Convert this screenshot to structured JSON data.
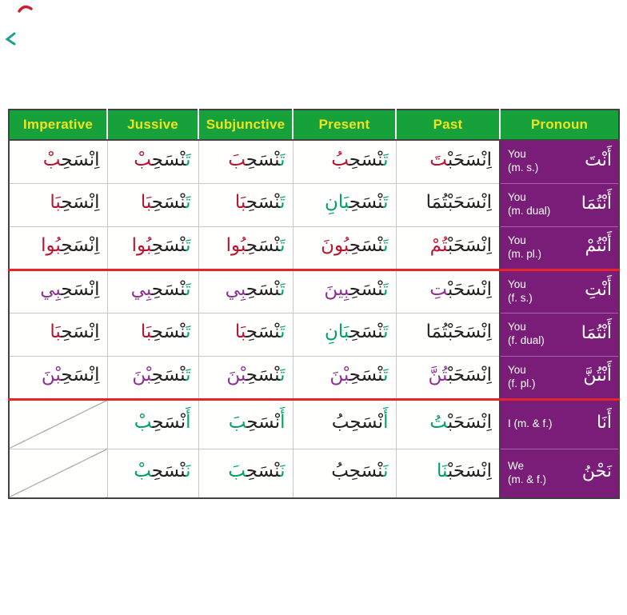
{
  "colors": {
    "black": "#231f20",
    "green": "#00a167",
    "red": "#b9132f",
    "purple": "#8d3190",
    "header_bg": "#17a13b",
    "header_text": "#efe31d",
    "pronoun_bg": "#7a1d79",
    "pronoun_text": "#ffffff",
    "section_line": "#e8242b",
    "grid_line": "#c8c8c8",
    "outer_border": "#414042"
  },
  "header": {
    "columns": [
      "Imperative",
      "Jussive",
      "Subjunctive",
      "Present",
      "Past",
      "Pronoun"
    ]
  },
  "column_keys": [
    "imperative",
    "jussive",
    "subjunctive",
    "present",
    "past"
  ],
  "rows": [
    {
      "imperative": [
        [
          "اِنْسَحِ",
          "black"
        ],
        [
          "بْ",
          "red"
        ]
      ],
      "jussive": [
        [
          "تَ",
          "green"
        ],
        [
          "نْسَحِ",
          "black"
        ],
        [
          "بْ",
          "red"
        ]
      ],
      "subjunctive": [
        [
          "تَ",
          "green"
        ],
        [
          "نْسَحِ",
          "black"
        ],
        [
          "بَ",
          "red"
        ]
      ],
      "present": [
        [
          "تَ",
          "green"
        ],
        [
          "نْسَحِ",
          "black"
        ],
        [
          "بُ",
          "red"
        ]
      ],
      "past": [
        [
          "اِنْسَحَبْ",
          "black"
        ],
        [
          "تَ",
          "red"
        ]
      ],
      "pronoun": {
        "en": [
          "You",
          "(m. s.)"
        ],
        "ar": "أَنْتَ"
      },
      "section_end": false
    },
    {
      "imperative": [
        [
          "اِنْسَحِ",
          "black"
        ],
        [
          "بَا",
          "red"
        ]
      ],
      "jussive": [
        [
          "تَ",
          "green"
        ],
        [
          "نْسَحِ",
          "black"
        ],
        [
          "بَا",
          "red"
        ]
      ],
      "subjunctive": [
        [
          "تَ",
          "green"
        ],
        [
          "نْسَحِ",
          "black"
        ],
        [
          "بَا",
          "red"
        ]
      ],
      "present": [
        [
          "تَ",
          "green"
        ],
        [
          "نْسَحِ",
          "black"
        ],
        [
          "بَانِ",
          "green"
        ]
      ],
      "past": [
        [
          "اِنْسَحَبْتُمَا",
          "black"
        ]
      ],
      "pronoun": {
        "en": [
          "You",
          "(m. dual)"
        ],
        "ar": "أَنْتُمَا"
      },
      "section_end": false
    },
    {
      "imperative": [
        [
          "اِنْسَحِ",
          "black"
        ],
        [
          "بُوا",
          "red"
        ]
      ],
      "jussive": [
        [
          "تَ",
          "green"
        ],
        [
          "نْسَحِ",
          "black"
        ],
        [
          "بُوا",
          "red"
        ]
      ],
      "subjunctive": [
        [
          "تَ",
          "green"
        ],
        [
          "نْسَحِ",
          "black"
        ],
        [
          "بُوا",
          "red"
        ]
      ],
      "present": [
        [
          "تَ",
          "green"
        ],
        [
          "نْسَحِ",
          "black"
        ],
        [
          "بُونَ",
          "red"
        ]
      ],
      "past": [
        [
          "اِنْسَحَبْ",
          "black"
        ],
        [
          "تُمْ",
          "red"
        ]
      ],
      "pronoun": {
        "en": [
          "You",
          "(m. pl.)"
        ],
        "ar": "أَنْتُمْ"
      },
      "section_end": true
    },
    {
      "imperative": [
        [
          "اِنْسَحِ",
          "black"
        ],
        [
          "بِي",
          "purple"
        ]
      ],
      "jussive": [
        [
          "تَ",
          "green"
        ],
        [
          "نْسَحِ",
          "black"
        ],
        [
          "بِي",
          "purple"
        ]
      ],
      "subjunctive": [
        [
          "تَ",
          "green"
        ],
        [
          "نْسَحِ",
          "black"
        ],
        [
          "بِي",
          "purple"
        ]
      ],
      "present": [
        [
          "تَ",
          "green"
        ],
        [
          "نْسَحِ",
          "black"
        ],
        [
          "بِينَ",
          "purple"
        ]
      ],
      "past": [
        [
          "اِنْسَحَبْ",
          "black"
        ],
        [
          "تِ",
          "purple"
        ]
      ],
      "pronoun": {
        "en": [
          "You",
          "(f. s.)"
        ],
        "ar": "أَنْتِ"
      },
      "section_end": false
    },
    {
      "imperative": [
        [
          "اِنْسَحِ",
          "black"
        ],
        [
          "بَا",
          "red"
        ]
      ],
      "jussive": [
        [
          "تَ",
          "green"
        ],
        [
          "نْسَحِ",
          "black"
        ],
        [
          "بَا",
          "red"
        ]
      ],
      "subjunctive": [
        [
          "تَ",
          "green"
        ],
        [
          "نْسَحِ",
          "black"
        ],
        [
          "بَا",
          "red"
        ]
      ],
      "present": [
        [
          "تَ",
          "green"
        ],
        [
          "نْسَحِ",
          "black"
        ],
        [
          "بَانِ",
          "green"
        ]
      ],
      "past": [
        [
          "اِنْسَحَبْتُمَا",
          "black"
        ]
      ],
      "pronoun": {
        "en": [
          "You",
          "(f. dual)"
        ],
        "ar": "أَنْتُمَا"
      },
      "section_end": false
    },
    {
      "imperative": [
        [
          "اِنْسَحِ",
          "black"
        ],
        [
          "بْنَ",
          "purple"
        ]
      ],
      "jussive": [
        [
          "تَ",
          "green"
        ],
        [
          "نْسَحِ",
          "black"
        ],
        [
          "بْنَ",
          "purple"
        ]
      ],
      "subjunctive": [
        [
          "تَ",
          "green"
        ],
        [
          "نْسَحِ",
          "black"
        ],
        [
          "بْنَ",
          "purple"
        ]
      ],
      "present": [
        [
          "تَ",
          "green"
        ],
        [
          "نْسَحِ",
          "black"
        ],
        [
          "بْنَ",
          "purple"
        ]
      ],
      "past": [
        [
          "اِنْسَحَبْ",
          "black"
        ],
        [
          "تُنَّ",
          "purple"
        ]
      ],
      "pronoun": {
        "en": [
          "You",
          "(f. pl.)"
        ],
        "ar": "أَنْتُنَّ"
      },
      "section_end": true
    },
    {
      "imperative": null,
      "jussive": [
        [
          "أَ",
          "green"
        ],
        [
          "نْسَحِ",
          "black"
        ],
        [
          "بْ",
          "green"
        ]
      ],
      "subjunctive": [
        [
          "أَ",
          "green"
        ],
        [
          "نْسَحِ",
          "black"
        ],
        [
          "بَ",
          "green"
        ]
      ],
      "present": [
        [
          "أَ",
          "green"
        ],
        [
          "نْسَحِبُ",
          "black"
        ]
      ],
      "past": [
        [
          "اِنْسَحَبْ",
          "black"
        ],
        [
          "تُ",
          "green"
        ]
      ],
      "pronoun": {
        "en": [
          "I (m. & f.)"
        ],
        "ar": "أَنَا"
      },
      "section_end": false
    },
    {
      "imperative": null,
      "jussive": [
        [
          "نَ",
          "green"
        ],
        [
          "نْسَحِ",
          "black"
        ],
        [
          "بْ",
          "green"
        ]
      ],
      "subjunctive": [
        [
          "نَ",
          "green"
        ],
        [
          "نْسَحِ",
          "black"
        ],
        [
          "بَ",
          "green"
        ]
      ],
      "present": [
        [
          "نَ",
          "green"
        ],
        [
          "نْسَحِبُ",
          "black"
        ]
      ],
      "past": [
        [
          "اِنْسَحَبْ",
          "black"
        ],
        [
          "نَا",
          "green"
        ]
      ],
      "pronoun": {
        "en": [
          "We",
          "(m. & f.)"
        ],
        "ar": "نَحْنُ"
      },
      "section_end": false
    }
  ]
}
